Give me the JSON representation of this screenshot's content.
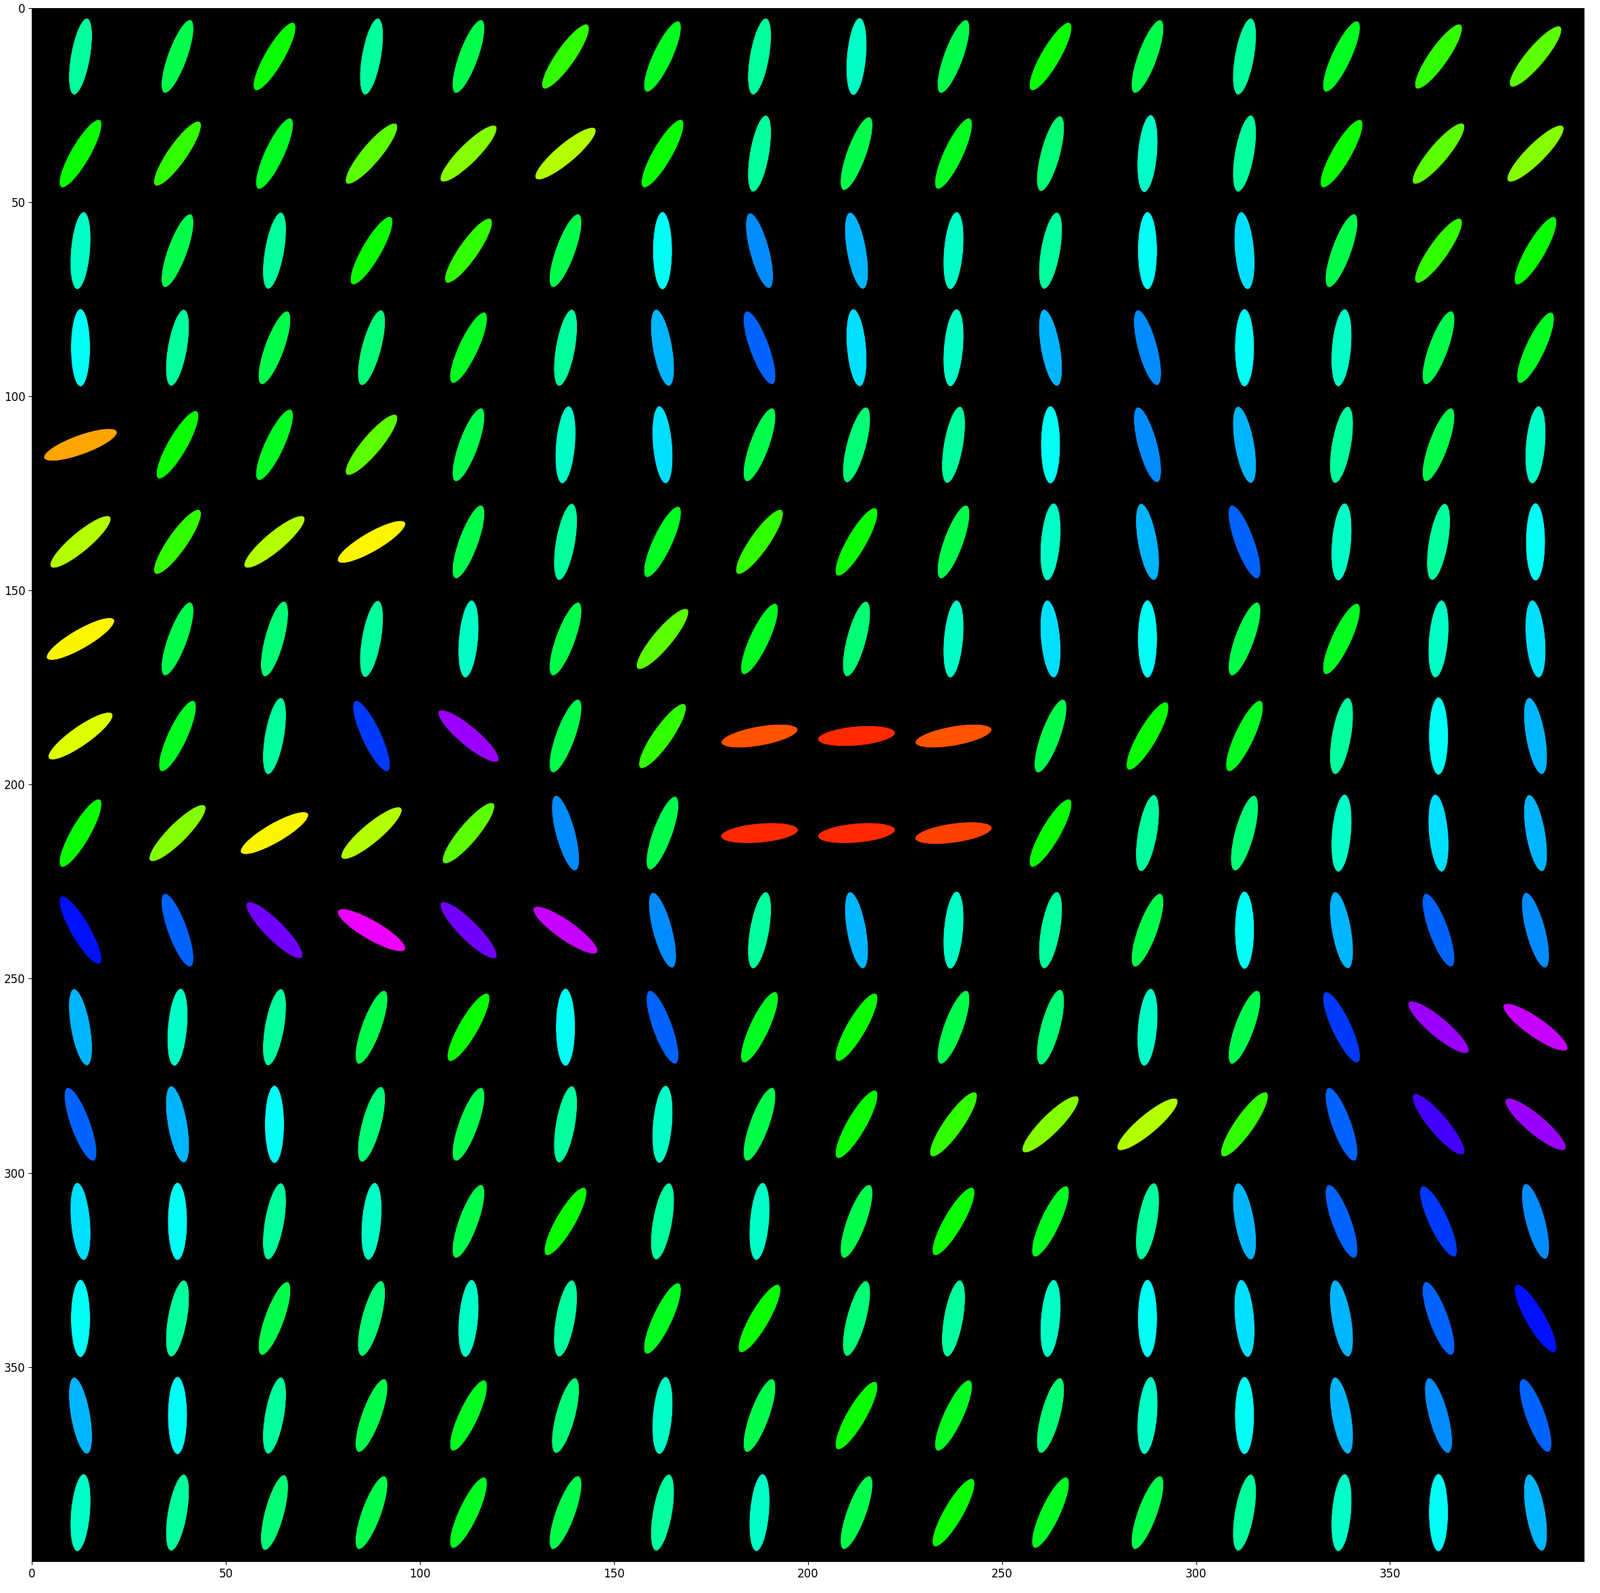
{
  "chart_data": {
    "type": "ellipse_field",
    "x": [
      12.5,
      37.5,
      62.5,
      87.5,
      112.5,
      137.5,
      162.5,
      187.5,
      212.5,
      237.5,
      262.5,
      287.5,
      312.5,
      337.5,
      362.5,
      387.5
    ],
    "y": [
      12.5,
      37.5,
      62.5,
      87.5,
      112.5,
      137.5,
      162.5,
      187.5,
      212.5,
      237.5,
      262.5,
      287.5,
      312.5,
      337.5,
      362.5,
      387.5
    ],
    "angle": [
      [
        100,
        110,
        120,
        100,
        110,
        125,
        115,
        100,
        95,
        110,
        120,
        110,
        100,
        115,
        125,
        130
      ],
      [
        120,
        125,
        115,
        130,
        135,
        140,
        120,
        100,
        110,
        115,
        105,
        95,
        100,
        120,
        130,
        135
      ],
      [
        95,
        110,
        100,
        120,
        125,
        110,
        90,
        75,
        80,
        95,
        100,
        90,
        85,
        110,
        125,
        120
      ],
      [
        90,
        100,
        110,
        105,
        115,
        100,
        80,
        70,
        85,
        95,
        80,
        75,
        90,
        95,
        110,
        115
      ],
      [
        160,
        120,
        115,
        130,
        110,
        95,
        85,
        110,
        105,
        100,
        90,
        75,
        80,
        100,
        110,
        95
      ],
      [
        140,
        125,
        140,
        150,
        110,
        100,
        115,
        125,
        120,
        110,
        95,
        80,
        70,
        95,
        100,
        90
      ],
      [
        150,
        110,
        105,
        100,
        95,
        110,
        130,
        115,
        105,
        95,
        85,
        90,
        110,
        115,
        95,
        85
      ],
      [
        145,
        115,
        100,
        65,
        40,
        110,
        125,
        170,
        175,
        170,
        110,
        120,
        115,
        100,
        90,
        80
      ],
      [
        120,
        135,
        150,
        140,
        130,
        75,
        110,
        175,
        175,
        172,
        120,
        100,
        105,
        95,
        85,
        80
      ],
      [
        60,
        70,
        45,
        30,
        45,
        35,
        75,
        100,
        80,
        95,
        100,
        110,
        90,
        80,
        70,
        75
      ],
      [
        80,
        95,
        100,
        110,
        120,
        90,
        70,
        115,
        120,
        110,
        105,
        95,
        110,
        65,
        40,
        35
      ],
      [
        70,
        80,
        90,
        105,
        110,
        100,
        95,
        110,
        120,
        125,
        135,
        140,
        125,
        70,
        50,
        40
      ],
      [
        85,
        90,
        100,
        95,
        110,
        120,
        100,
        95,
        110,
        120,
        115,
        100,
        80,
        70,
        65,
        75
      ],
      [
        90,
        100,
        110,
        105,
        95,
        100,
        115,
        120,
        105,
        100,
        95,
        90,
        85,
        80,
        70,
        60
      ],
      [
        80,
        90,
        100,
        110,
        115,
        105,
        95,
        110,
        120,
        115,
        105,
        95,
        90,
        80,
        75,
        70
      ],
      [
        95,
        100,
        105,
        110,
        115,
        110,
        100,
        95,
        110,
        120,
        115,
        110,
        100,
        95,
        90,
        80
      ]
    ],
    "xlim": [
      0,
      400
    ],
    "ylim": [
      400,
      0
    ],
    "xticks": [
      0,
      50,
      100,
      150,
      200,
      250,
      300,
      350
    ],
    "yticks": [
      0,
      50,
      100,
      150,
      200,
      250,
      300,
      350
    ]
  }
}
